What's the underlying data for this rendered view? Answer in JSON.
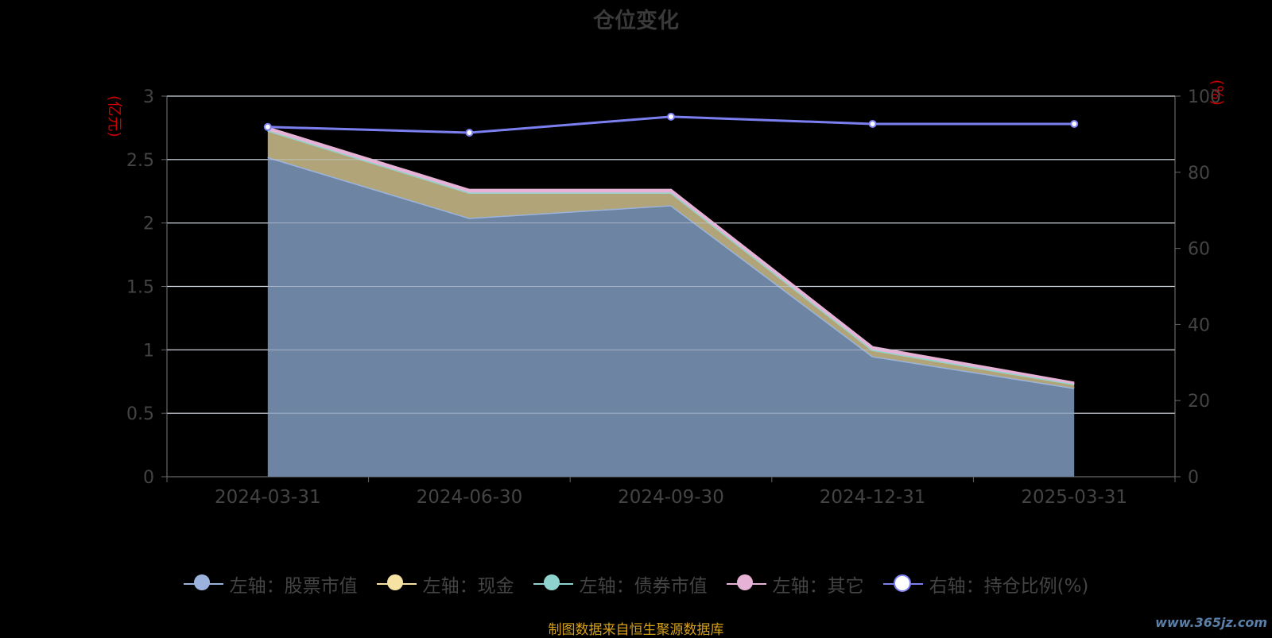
{
  "title": "仓位变化",
  "left_unit": "(亿元)",
  "right_unit": "(%)",
  "source": "制图数据来自恒生聚源数据库",
  "watermark": "www.365jz.com",
  "legend": [
    {
      "label": "左轴：股票市值",
      "color": "#9bb3dc"
    },
    {
      "label": "左轴：现金",
      "color": "#f6e3a3"
    },
    {
      "label": "左轴：债券市值",
      "color": "#8fd3cf"
    },
    {
      "label": "左轴：其它",
      "color": "#e6b3d6"
    },
    {
      "label": "右轴：持仓比例(%)",
      "color": "#7b7ff0"
    }
  ],
  "chart_data": {
    "type": "area",
    "categories": [
      "2024-03-31",
      "2024-06-30",
      "2024-09-30",
      "2024-12-31",
      "2025-03-31"
    ],
    "y_left": {
      "ticks": [
        0,
        0.5,
        1,
        1.5,
        2,
        2.5,
        3
      ],
      "tick_labels": [
        "0",
        "0.5",
        "1",
        "1.5",
        "2",
        "2.5",
        "3"
      ],
      "range": [
        0,
        3
      ]
    },
    "y_right": {
      "ticks": [
        0,
        20,
        40,
        60,
        80,
        100
      ],
      "tick_labels": [
        "0",
        "20",
        "40",
        "60",
        "80",
        "100"
      ],
      "range": [
        0,
        100
      ]
    },
    "series": [
      {
        "name": "左轴：股票市值",
        "axis": "left",
        "stack": true,
        "values": [
          2.52,
          2.04,
          2.14,
          0.95,
          0.7
        ]
      },
      {
        "name": "左轴：现金",
        "axis": "left",
        "stack": true,
        "values": [
          0.21,
          0.2,
          0.1,
          0.05,
          0.03
        ]
      },
      {
        "name": "左轴：债券市值",
        "axis": "left",
        "stack": true,
        "values": [
          0,
          0,
          0,
          0,
          0
        ]
      },
      {
        "name": "左轴：其它",
        "axis": "left",
        "stack": true,
        "values": [
          0.02,
          0.02,
          0.02,
          0.02,
          0.01
        ]
      },
      {
        "name": "右轴：持仓比例(%)",
        "axis": "right",
        "stack": false,
        "values": [
          91.9,
          90.4,
          94.6,
          92.7,
          92.7
        ]
      }
    ]
  }
}
